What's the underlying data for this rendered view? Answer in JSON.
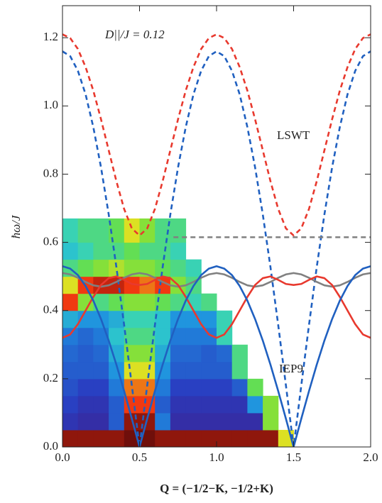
{
  "chart_data": {
    "type": "line",
    "annotations": [
      "D||/J = 0.12",
      "LSWT",
      "IEP9"
    ],
    "x_label": "Q = (−1/2−K, −1/2+K)",
    "y_label": "ħω/J",
    "xlim": [
      0,
      2.0
    ],
    "ylim": [
      0,
      1.294
    ],
    "xticks": [
      {
        "value": 0,
        "label": "0.0"
      },
      {
        "value": 0.5,
        "label": "0.5"
      },
      {
        "value": 1.0,
        "label": "1.0"
      },
      {
        "value": 1.5,
        "label": "1.5"
      },
      {
        "value": 2.0,
        "label": "2.0"
      }
    ],
    "yticks": [
      {
        "value": 0,
        "label": "0.0"
      },
      {
        "value": 0.2,
        "label": "0.2"
      },
      {
        "value": 0.4,
        "label": "0.4"
      },
      {
        "value": 0.6,
        "label": "0.6"
      },
      {
        "value": 0.8,
        "label": "0.8"
      },
      {
        "value": 1.0,
        "label": "1.0"
      },
      {
        "value": 1.2,
        "label": "1.2"
      }
    ],
    "heatmap": {
      "colormap": [
        "#4a0e6a",
        "#2a3cc0",
        "#1e8ee0",
        "#30d0c8",
        "#6ce040",
        "#e8e020",
        "#f03010",
        "#5a0a0a"
      ],
      "xbins": [
        0,
        0.1,
        0.2,
        0.3,
        0.4,
        0.5,
        0.6,
        0.7,
        0.8,
        0.9,
        1.0,
        1.1,
        1.2,
        1.3,
        1.4,
        1.5
      ],
      "ybins": [
        0,
        0.05,
        0.1,
        0.15,
        0.2,
        0.25,
        0.3,
        0.35,
        0.4,
        0.45,
        0.5,
        0.55,
        0.6,
        0.67
      ],
      "z": [
        [
          0.95,
          0.95,
          0.95,
          0.95,
          0.98,
          0.98,
          0.95,
          0.95,
          0.95,
          0.95,
          0.95,
          0.95,
          0.95,
          0.95,
          0.7
        ],
        [
          0.12,
          0.1,
          0.1,
          0.2,
          0.95,
          0.95,
          0.25,
          0.1,
          0.1,
          0.1,
          0.1,
          0.1,
          0.1,
          0.6
        ],
        [
          0.15,
          0.12,
          0.12,
          0.2,
          0.85,
          0.85,
          0.2,
          0.12,
          0.12,
          0.12,
          0.12,
          0.12,
          0.3,
          0.6
        ],
        [
          0.18,
          0.15,
          0.15,
          0.25,
          0.8,
          0.8,
          0.25,
          0.15,
          0.15,
          0.15,
          0.15,
          0.2,
          0.55
        ],
        [
          0.2,
          0.2,
          0.2,
          0.3,
          0.7,
          0.7,
          0.3,
          0.2,
          0.2,
          0.2,
          0.2,
          0.5
        ],
        [
          0.22,
          0.2,
          0.22,
          0.35,
          0.6,
          0.6,
          0.35,
          0.22,
          0.22,
          0.2,
          0.22,
          0.5
        ],
        [
          0.25,
          0.22,
          0.25,
          0.4,
          0.5,
          0.5,
          0.4,
          0.25,
          0.25,
          0.25,
          0.45
        ],
        [
          0.35,
          0.3,
          0.3,
          0.35,
          0.45,
          0.45,
          0.4,
          0.3,
          0.3,
          0.3,
          0.45
        ],
        [
          0.85,
          0.6,
          0.5,
          0.55,
          0.6,
          0.6,
          0.55,
          0.5,
          0.45,
          0.5
        ],
        [
          0.7,
          0.85,
          0.9,
          0.9,
          0.85,
          0.8,
          0.85,
          0.6,
          0.5
        ],
        [
          0.5,
          0.55,
          0.6,
          0.65,
          0.6,
          0.6,
          0.55,
          0.5,
          0.45
        ],
        [
          0.4,
          0.45,
          0.5,
          0.5,
          0.55,
          0.5,
          0.5,
          0.45
        ],
        [
          0.45,
          0.5,
          0.5,
          0.55,
          0.7,
          0.6,
          0.5,
          0.5
        ]
      ]
    },
    "x": [
      0,
      0.05,
      0.1,
      0.15,
      0.2,
      0.25,
      0.3,
      0.35,
      0.4,
      0.45,
      0.5,
      0.55,
      0.6,
      0.65,
      0.7,
      0.75,
      0.8,
      0.85,
      0.9,
      0.95,
      1.0,
      1.05,
      1.1,
      1.15,
      1.2,
      1.25,
      1.3,
      1.35,
      1.4,
      1.45,
      1.5,
      1.55,
      1.6,
      1.65,
      1.7,
      1.75,
      1.8,
      1.85,
      1.9,
      1.95,
      2.0
    ],
    "series": [
      {
        "color": "#e8392e",
        "dash": true,
        "values": [
          1.21,
          1.199,
          1.167,
          1.114,
          1.045,
          0.961,
          0.87,
          0.779,
          0.698,
          0.641,
          0.62,
          0.641,
          0.698,
          0.779,
          0.87,
          0.961,
          1.045,
          1.114,
          1.167,
          1.199,
          1.21,
          1.199,
          1.167,
          1.114,
          1.045,
          0.961,
          0.87,
          0.779,
          0.698,
          0.641,
          0.62,
          0.641,
          0.698,
          0.779,
          0.87,
          0.961,
          1.045,
          1.114,
          1.167,
          1.199,
          1.21
        ]
      },
      {
        "color": "#2060c0",
        "dash": true,
        "values": [
          1.16,
          1.146,
          1.103,
          1.034,
          0.938,
          0.82,
          0.682,
          0.527,
          0.358,
          0.181,
          0,
          0.181,
          0.358,
          0.527,
          0.682,
          0.82,
          0.938,
          1.034,
          1.103,
          1.146,
          1.16,
          1.146,
          1.103,
          1.034,
          0.938,
          0.82,
          0.682,
          0.527,
          0.358,
          0.181,
          0,
          0.181,
          0.358,
          0.527,
          0.682,
          0.82,
          0.938,
          1.034,
          1.103,
          1.146,
          1.16
        ]
      },
      {
        "color": "#808080",
        "dash": true,
        "x": [
          0.72,
          2.0
        ],
        "values": [
          0.615,
          0.615
        ]
      },
      {
        "color": "#808080",
        "dash": false,
        "values": [
          0.51,
          0.506,
          0.496,
          0.484,
          0.474,
          0.47,
          0.474,
          0.484,
          0.496,
          0.506,
          0.51,
          0.506,
          0.496,
          0.484,
          0.474,
          0.47,
          0.474,
          0.484,
          0.496,
          0.506,
          0.51,
          0.506,
          0.496,
          0.484,
          0.474,
          0.47,
          0.474,
          0.484,
          0.496,
          0.506,
          0.51,
          0.506,
          0.496,
          0.484,
          0.474,
          0.47,
          0.474,
          0.484,
          0.496,
          0.506,
          0.51
        ]
      },
      {
        "color": "#e8392e",
        "dash": false,
        "values": [
          0.32,
          0.33,
          0.36,
          0.4,
          0.44,
          0.475,
          0.495,
          0.5,
          0.49,
          0.478,
          0.475,
          0.478,
          0.49,
          0.5,
          0.495,
          0.475,
          0.44,
          0.4,
          0.36,
          0.33,
          0.32,
          0.33,
          0.36,
          0.4,
          0.44,
          0.475,
          0.495,
          0.5,
          0.49,
          0.478,
          0.475,
          0.478,
          0.49,
          0.5,
          0.495,
          0.475,
          0.44,
          0.4,
          0.36,
          0.33,
          0.32
        ]
      },
      {
        "color": "#2060c0",
        "dash": false,
        "values": [
          0.53,
          0.523,
          0.504,
          0.472,
          0.429,
          0.375,
          0.312,
          0.241,
          0.164,
          0.083,
          0,
          0.083,
          0.164,
          0.241,
          0.312,
          0.375,
          0.429,
          0.472,
          0.504,
          0.523,
          0.53,
          0.523,
          0.504,
          0.472,
          0.429,
          0.375,
          0.312,
          0.241,
          0.164,
          0.083,
          0,
          0.083,
          0.164,
          0.241,
          0.312,
          0.375,
          0.429,
          0.472,
          0.504,
          0.523,
          0.53
        ]
      }
    ]
  }
}
